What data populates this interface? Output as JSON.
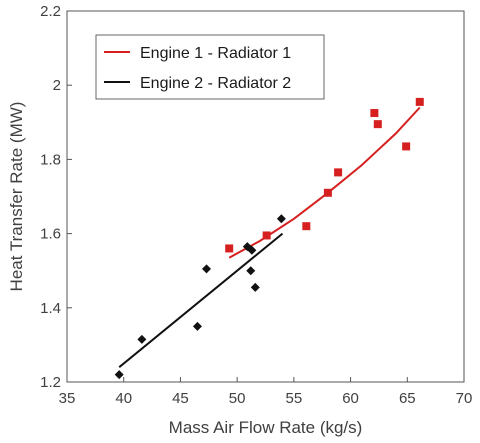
{
  "chart_data": {
    "type": "scatter",
    "title": "",
    "xlabel": "Mass Air Flow Rate (kg/s)",
    "ylabel": "Heat Transfer Rate (MW)",
    "xlim": [
      35,
      70
    ],
    "ylim": [
      1.2,
      2.2
    ],
    "xticks": [
      35,
      40,
      45,
      50,
      55,
      60,
      65,
      70
    ],
    "yticks": [
      1.2,
      1.4,
      1.6,
      1.8,
      2.0,
      2.2
    ],
    "xtick_labels": [
      "35",
      "40",
      "45",
      "50",
      "55",
      "60",
      "65",
      "70"
    ],
    "ytick_labels": [
      "1.2",
      "1.4",
      "1.6",
      "1.8",
      "2",
      "2.2"
    ],
    "grid": false,
    "legend_position": "top-left",
    "series": [
      {
        "name": "Engine 1 - Radiator 1",
        "color": "#d62020",
        "marker": "square",
        "x": [
          49.3,
          52.6,
          56.1,
          58.0,
          58.9,
          62.1,
          62.4,
          64.9,
          66.1
        ],
        "y": [
          1.56,
          1.595,
          1.62,
          1.71,
          1.765,
          1.925,
          1.895,
          1.835,
          1.955
        ],
        "fit": {
          "x": [
            49.3,
            52,
            55,
            58,
            61,
            64,
            66.1
          ],
          "y": [
            1.535,
            1.58,
            1.64,
            1.71,
            1.785,
            1.87,
            1.94
          ]
        }
      },
      {
        "name": "Engine 2 - Radiator 2",
        "color": "#111111",
        "marker": "diamond",
        "x": [
          39.6,
          41.6,
          46.5,
          47.3,
          50.9,
          51.2,
          51.3,
          51.6,
          53.9
        ],
        "y": [
          1.22,
          1.315,
          1.35,
          1.505,
          1.565,
          1.5,
          1.555,
          1.455,
          1.64
        ],
        "fit": {
          "x": [
            39.6,
            54.0
          ],
          "y": [
            1.24,
            1.6
          ]
        }
      }
    ]
  }
}
